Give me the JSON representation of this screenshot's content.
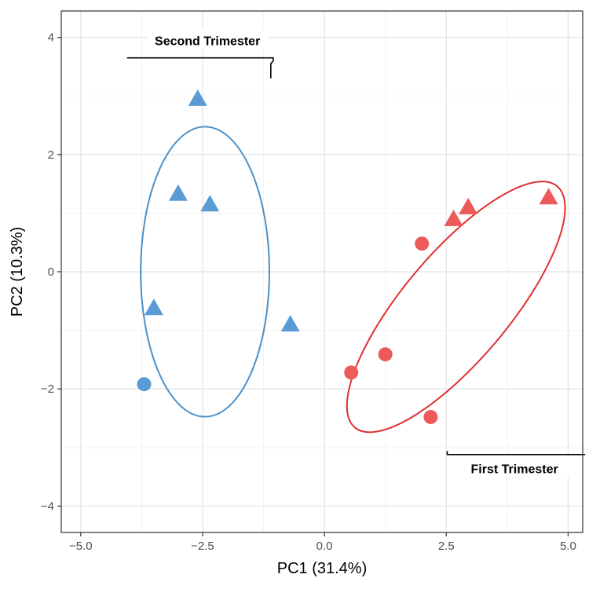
{
  "chart_data": {
    "type": "scatter",
    "xlabel": "PC1 (31.4%)",
    "ylabel": "PC2 (10.3%)",
    "xlim": [
      -5.4,
      5.3
    ],
    "ylim": [
      -4.45,
      4.45
    ],
    "x_ticks": [
      -5.0,
      -2.5,
      0.0,
      2.5,
      5.0
    ],
    "x_tick_labels": [
      "−5.0",
      "−2.5",
      "0.0",
      "2.5",
      "5.0"
    ],
    "y_ticks": [
      -4,
      -2,
      0,
      2,
      4
    ],
    "y_tick_labels": [
      "−4",
      "−2",
      "0",
      "2",
      "4"
    ],
    "grid": true,
    "colors": {
      "second": "#5b9bd5",
      "first": "#ed5a5a",
      "ellipse_second": "#4a90c8",
      "ellipse_first": "#e03030"
    },
    "series": [
      {
        "group": "second",
        "points": [
          {
            "x": -2.6,
            "y": 2.95,
            "shape": "triangle"
          },
          {
            "x": -3.0,
            "y": 1.33,
            "shape": "triangle"
          },
          {
            "x": -2.35,
            "y": 1.15,
            "shape": "triangle"
          },
          {
            "x": -3.5,
            "y": -0.62,
            "shape": "triangle"
          },
          {
            "x": -0.7,
            "y": -0.9,
            "shape": "triangle"
          },
          {
            "x": -3.7,
            "y": -1.92,
            "shape": "circle"
          }
        ]
      },
      {
        "group": "first",
        "points": [
          {
            "x": 2.65,
            "y": 0.9,
            "shape": "triangle"
          },
          {
            "x": 2.95,
            "y": 1.1,
            "shape": "triangle"
          },
          {
            "x": 4.6,
            "y": 1.27,
            "shape": "triangle"
          },
          {
            "x": 2.0,
            "y": 0.48,
            "shape": "circle"
          },
          {
            "x": 1.25,
            "y": -1.41,
            "shape": "circle"
          },
          {
            "x": 0.55,
            "y": -1.72,
            "shape": "circle"
          },
          {
            "x": 2.18,
            "y": -2.48,
            "shape": "circle"
          }
        ]
      }
    ],
    "ellipses": [
      {
        "group": "second",
        "cx": -2.45,
        "cy": 0.0,
        "rx": 2.2,
        "ry": 3.3,
        "rotation": 0
      },
      {
        "group": "first",
        "cx": 2.7,
        "cy": -0.6,
        "rx": 3.4,
        "ry": 1.65,
        "rotation": 50
      }
    ],
    "annotations": [
      {
        "text": "Second Trimester",
        "x": -2.4,
        "y": 3.95,
        "leader": [
          [
            -4.05,
            3.65
          ],
          [
            -1.05,
            3.65
          ],
          [
            -1.05,
            3.6
          ],
          [
            -1.1,
            3.55
          ],
          [
            -1.1,
            3.3
          ]
        ]
      },
      {
        "text": "First Trimester",
        "x": 3.9,
        "y": -3.36,
        "leader": [
          [
            2.52,
            -3.06
          ],
          [
            2.52,
            -3.12
          ],
          [
            5.35,
            -3.12
          ]
        ]
      }
    ]
  }
}
